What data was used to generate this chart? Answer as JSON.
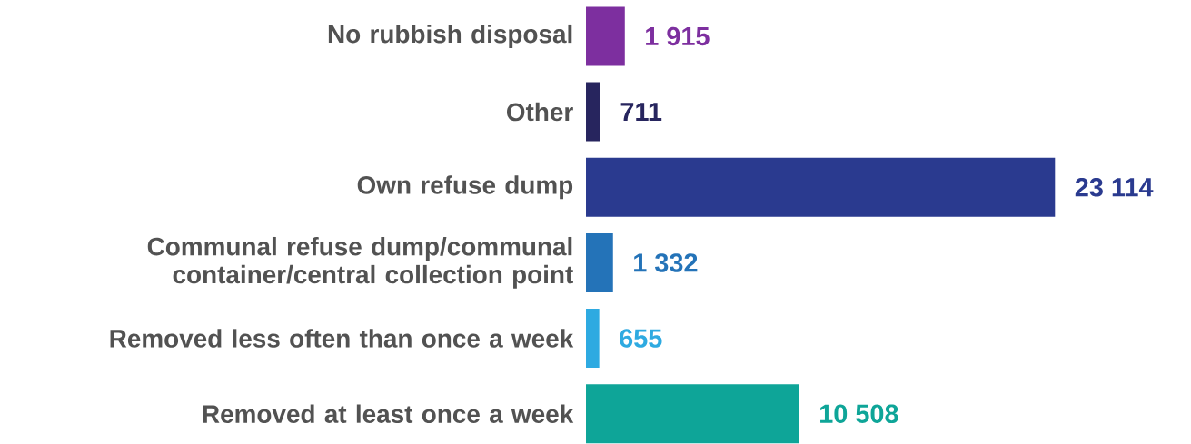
{
  "chart_data": {
    "type": "bar",
    "orientation": "horizontal",
    "categories": [
      "No rubbish disposal",
      "Other",
      "Own refuse dump",
      "Communal refuse dump/communal container/central collection point",
      "Removed less often than once a week",
      "Removed at least once a week"
    ],
    "values": [
      1915,
      711,
      23114,
      1332,
      655,
      10508
    ],
    "value_labels": [
      "1 915",
      "711",
      "23 114",
      "1 332",
      "655",
      "10 508"
    ],
    "colors": [
      "#7d2f9f",
      "#27255e",
      "#2a3a8f",
      "#2473b8",
      "#2eaae1",
      "#0ea598"
    ]
  }
}
